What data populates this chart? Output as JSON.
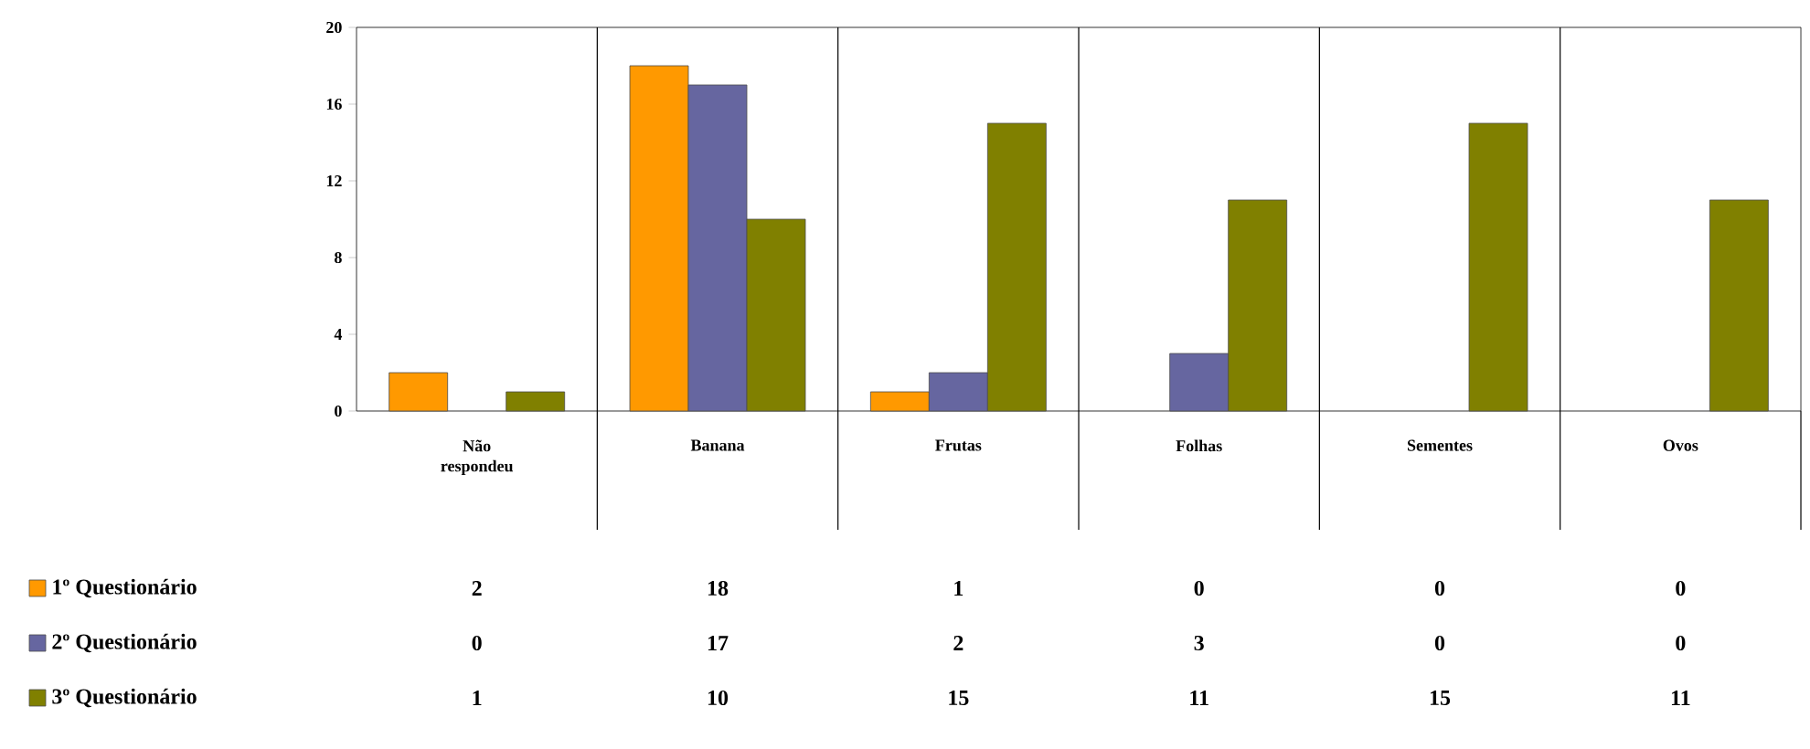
{
  "chart_data": {
    "type": "bar",
    "categories": [
      "Não respondeu",
      "Banana",
      "Frutas",
      "Folhas",
      "Sementes",
      "Ovos"
    ],
    "series": [
      {
        "name": "1º Questionário",
        "color": "#ff9900",
        "values": [
          2,
          18,
          1,
          0,
          0,
          0
        ]
      },
      {
        "name": "2º Questionário",
        "color": "#6666a0",
        "values": [
          0,
          17,
          2,
          3,
          0,
          0
        ]
      },
      {
        "name": "3º Questionário",
        "color": "#808000",
        "values": [
          1,
          10,
          15,
          11,
          15,
          11
        ]
      }
    ],
    "ylim": [
      0,
      20
    ],
    "yticks": [
      0,
      4,
      8,
      12,
      16,
      20
    ],
    "grid": "x",
    "legend": "bottom",
    "data_labels": true
  }
}
